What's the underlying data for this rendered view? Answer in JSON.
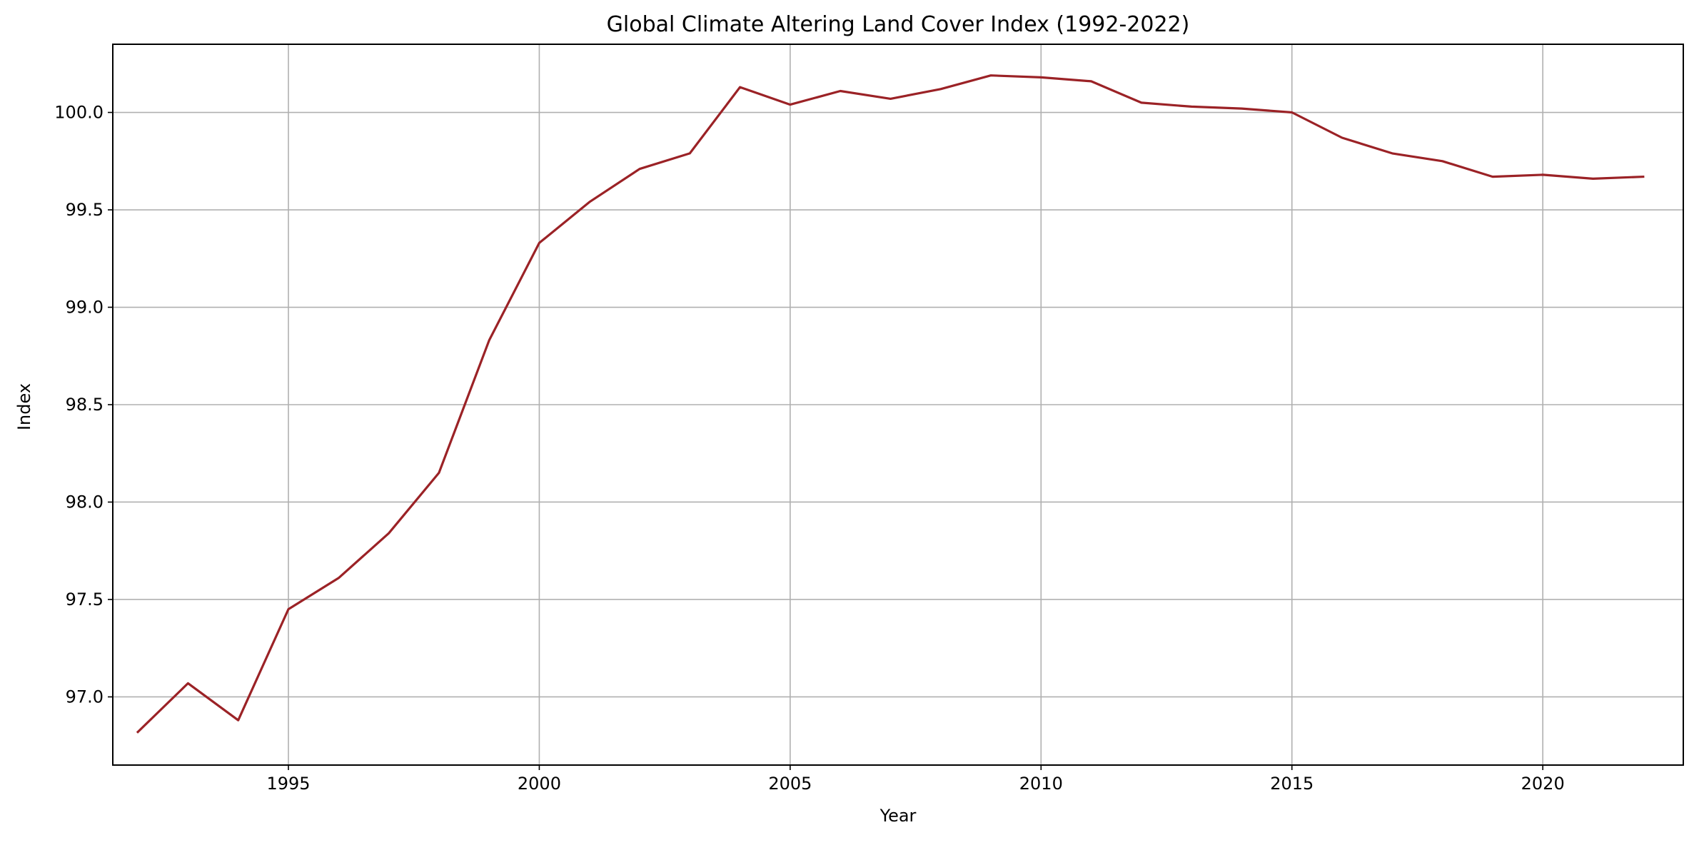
{
  "chart_data": {
    "type": "line",
    "title": "Global Climate Altering Land Cover Index (1992-2022)",
    "xlabel": "Year",
    "ylabel": "Index",
    "xlim": [
      1991.5,
      2022.8
    ],
    "ylim": [
      96.65,
      100.35
    ],
    "x_ticks": [
      1995,
      2000,
      2005,
      2010,
      2015,
      2020
    ],
    "x_tick_labels": [
      "1995",
      "2000",
      "2005",
      "2010",
      "2015",
      "2020"
    ],
    "y_ticks": [
      97.0,
      97.5,
      98.0,
      98.5,
      99.0,
      99.5,
      100.0
    ],
    "y_tick_labels": [
      "97.0",
      "97.5",
      "98.0",
      "98.5",
      "99.0",
      "99.5",
      "100.0"
    ],
    "grid": true,
    "line_color": "#9b2226",
    "grid_color": "#b0b0b0",
    "series": [
      {
        "x": [
          1992,
          1993,
          1994,
          1995,
          1996,
          1997,
          1998,
          1999,
          2000,
          2001,
          2002,
          2003,
          2004,
          2005,
          2006,
          2007,
          2008,
          2009,
          2010,
          2011,
          2012,
          2013,
          2014,
          2015,
          2016,
          2017,
          2018,
          2019,
          2020,
          2021,
          2022
        ],
        "values": [
          96.82,
          97.07,
          96.88,
          97.45,
          97.61,
          97.84,
          98.15,
          98.83,
          99.33,
          99.54,
          99.71,
          99.79,
          100.13,
          100.04,
          100.11,
          100.07,
          100.12,
          100.19,
          100.18,
          100.16,
          100.05,
          100.03,
          100.02,
          100.0,
          99.87,
          99.79,
          99.75,
          99.67,
          99.68,
          99.66,
          99.67
        ]
      }
    ]
  }
}
